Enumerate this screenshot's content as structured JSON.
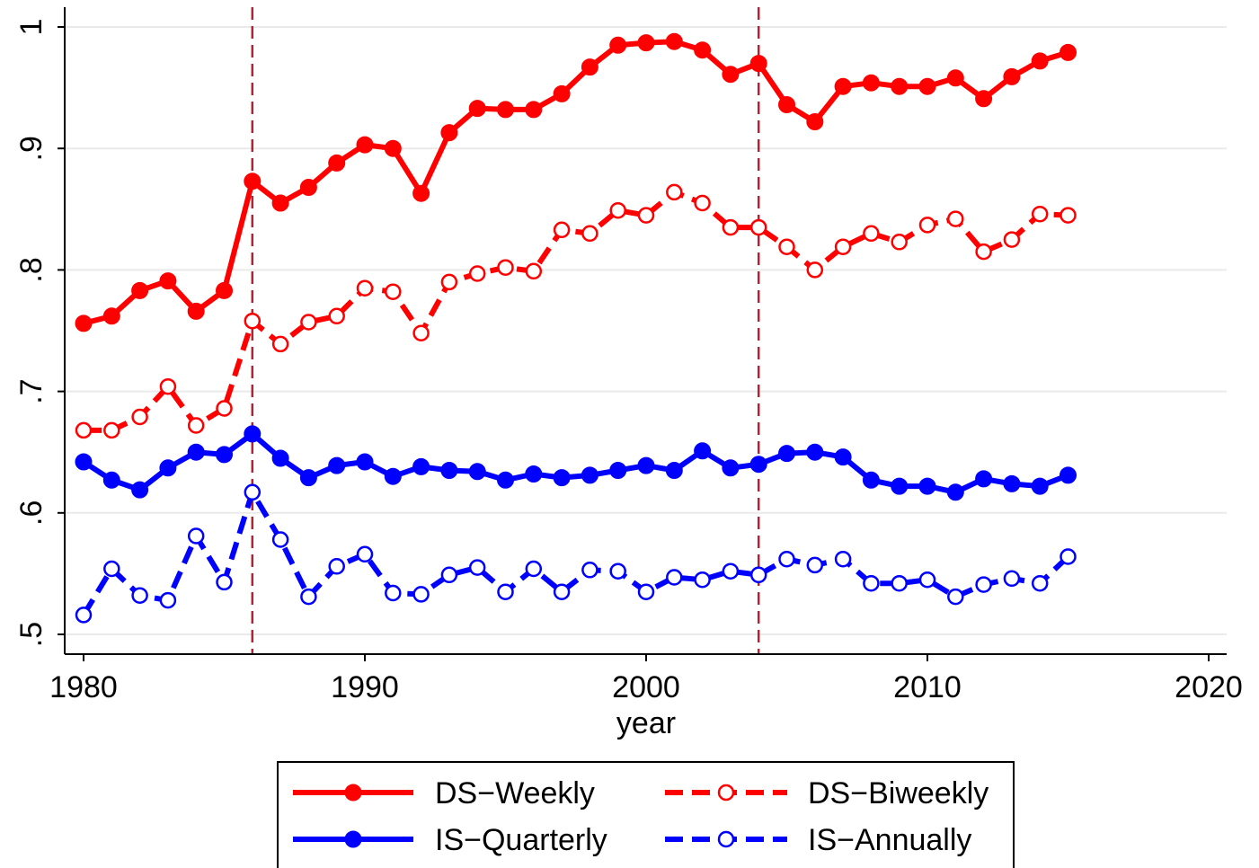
{
  "chart_data": {
    "type": "line",
    "title": "",
    "xlabel": "year",
    "ylabel": "",
    "xlim": [
      1980,
      2020
    ],
    "ylim": [
      0.5,
      1.0
    ],
    "x_ticks": [
      "1980",
      "1990",
      "2000",
      "2010",
      "2020"
    ],
    "y_ticks": [
      ".5",
      ".6",
      ".7",
      ".8",
      ".9",
      "1"
    ],
    "grid": "horizontal",
    "legend_position": "bottom",
    "reference_lines_x": [
      1986,
      2004
    ],
    "reference_line_color": "#b22234",
    "x": [
      1980,
      1981,
      1982,
      1983,
      1984,
      1985,
      1986,
      1987,
      1988,
      1989,
      1990,
      1991,
      1992,
      1993,
      1994,
      1995,
      1996,
      1997,
      1998,
      1999,
      2000,
      2001,
      2002,
      2003,
      2004,
      2005,
      2006,
      2007,
      2008,
      2009,
      2010,
      2011,
      2012,
      2013,
      2014,
      2015
    ],
    "series": [
      {
        "name": "DS−Weekly",
        "color": "#ff0000",
        "line": "solid",
        "marker": "filled-circle",
        "values": [
          0.756,
          0.762,
          0.783,
          0.791,
          0.766,
          0.783,
          0.873,
          0.855,
          0.868,
          0.888,
          0.903,
          0.9,
          0.863,
          0.913,
          0.933,
          0.932,
          0.932,
          0.945,
          0.967,
          0.985,
          0.987,
          0.988,
          0.981,
          0.961,
          0.97,
          0.936,
          0.922,
          0.951,
          0.954,
          0.951,
          0.951,
          0.958,
          0.941,
          0.959,
          0.972,
          0.979
        ]
      },
      {
        "name": "DS−Biweekly",
        "color": "#ff0000",
        "line": "dashed",
        "marker": "hollow-circle",
        "values": [
          0.668,
          0.668,
          0.679,
          0.704,
          0.672,
          0.686,
          0.758,
          0.739,
          0.757,
          0.762,
          0.785,
          0.782,
          0.748,
          0.79,
          0.797,
          0.802,
          0.799,
          0.833,
          0.83,
          0.849,
          0.845,
          0.864,
          0.855,
          0.835,
          0.835,
          0.819,
          0.8,
          0.819,
          0.83,
          0.823,
          0.837,
          0.842,
          0.815,
          0.825,
          0.846,
          0.845
        ]
      },
      {
        "name": "IS−Quarterly",
        "color": "#0000ff",
        "line": "solid",
        "marker": "filled-circle",
        "values": [
          0.642,
          0.627,
          0.619,
          0.637,
          0.65,
          0.648,
          0.665,
          0.645,
          0.629,
          0.639,
          0.642,
          0.63,
          0.638,
          0.635,
          0.634,
          0.627,
          0.632,
          0.629,
          0.631,
          0.635,
          0.639,
          0.635,
          0.651,
          0.637,
          0.64,
          0.649,
          0.65,
          0.646,
          0.627,
          0.622,
          0.622,
          0.617,
          0.628,
          0.624,
          0.622,
          0.631
        ]
      },
      {
        "name": "IS−Annually",
        "color": "#0000ff",
        "line": "dashed",
        "marker": "hollow-circle",
        "values": [
          0.516,
          0.554,
          0.532,
          0.528,
          0.581,
          0.543,
          0.617,
          0.578,
          0.531,
          0.556,
          0.566,
          0.534,
          0.533,
          0.549,
          0.555,
          0.535,
          0.554,
          0.535,
          0.553,
          0.552,
          0.535,
          0.547,
          0.545,
          0.552,
          0.549,
          0.562,
          0.557,
          0.562,
          0.542,
          0.542,
          0.545,
          0.531,
          0.541,
          0.546,
          0.542,
          0.564
        ]
      }
    ]
  }
}
